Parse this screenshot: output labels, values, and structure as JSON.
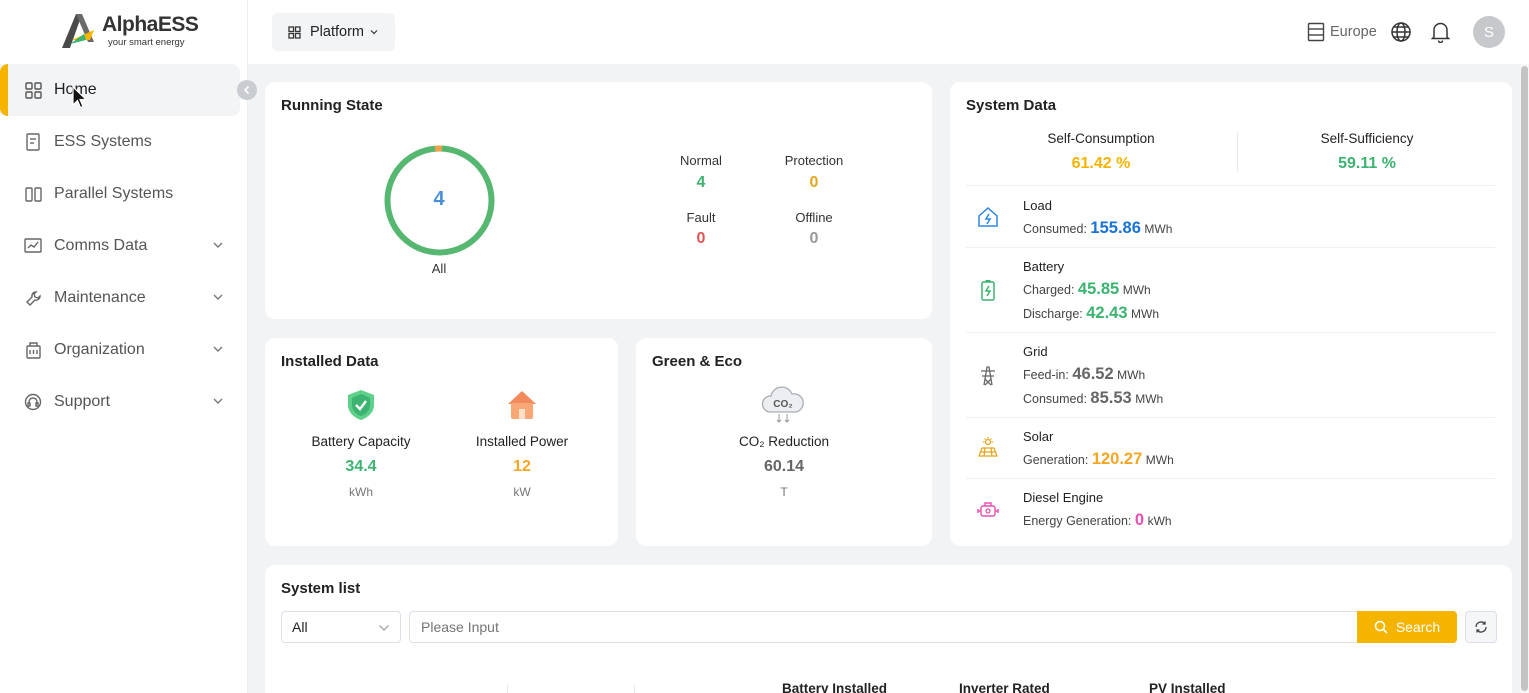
{
  "brand": {
    "name": "AlphaESS",
    "tagline": "your smart energy"
  },
  "sidebar": {
    "items": [
      {
        "label": "Home",
        "icon": "grid-icon",
        "active": true
      },
      {
        "label": "ESS Systems",
        "icon": "ess-icon"
      },
      {
        "label": "Parallel Systems",
        "icon": "parallel-icon"
      },
      {
        "label": "Comms Data",
        "icon": "chart-icon",
        "expandable": true
      },
      {
        "label": "Maintenance",
        "icon": "wrench-icon",
        "expandable": true
      },
      {
        "label": "Organization",
        "icon": "building-icon",
        "expandable": true
      },
      {
        "label": "Support",
        "icon": "headset-icon",
        "expandable": true
      }
    ]
  },
  "header": {
    "platform_label": "Platform",
    "region_label": "Europe",
    "avatar_initial": "S"
  },
  "running_state": {
    "title": "Running State",
    "total": "4",
    "total_label": "All",
    "normal_label": "Normal",
    "normal_value": "4",
    "protection_label": "Protection",
    "protection_value": "0",
    "fault_label": "Fault",
    "fault_value": "0",
    "offline_label": "Offline",
    "offline_value": "0"
  },
  "installed_data": {
    "title": "Installed Data",
    "battery_label": "Battery Capacity",
    "battery_value": "34.4",
    "battery_unit": "kWh",
    "power_label": "Installed Power",
    "power_value": "12",
    "power_unit": "kW"
  },
  "green_eco": {
    "title": "Green & Eco",
    "co2_label": "CO₂ Reduction",
    "co2_value": "60.14",
    "co2_unit": "T"
  },
  "system_data": {
    "title": "System Data",
    "self_consumption_label": "Self-Consumption",
    "self_consumption_value": "61.42",
    "self_sufficiency_label": "Self-Sufficiency",
    "self_sufficiency_value": "59.11",
    "percent": "%",
    "load": {
      "name": "Load",
      "consumed_label": "Consumed:",
      "consumed_value": "155.86",
      "unit": "MWh"
    },
    "battery": {
      "name": "Battery",
      "charged_label": "Charged:",
      "charged_value": "45.85",
      "discharge_label": "Discharge:",
      "discharge_value": "42.43",
      "unit": "MWh"
    },
    "grid": {
      "name": "Grid",
      "feedin_label": "Feed-in:",
      "feedin_value": "46.52",
      "consumed_label": "Consumed:",
      "consumed_value": "85.53",
      "unit": "MWh"
    },
    "solar": {
      "name": "Solar",
      "generation_label": "Generation:",
      "generation_value": "120.27",
      "unit": "MWh"
    },
    "diesel": {
      "name": "Diesel Engine",
      "generation_label": "Energy Generation:",
      "generation_value": "0",
      "unit": "kWh"
    }
  },
  "system_list": {
    "title": "System list",
    "filter_value": "All",
    "search_placeholder": "Please Input",
    "search_label": "Search",
    "columns": [
      "Battery Installed",
      "Inverter Rated",
      "PV Installed"
    ]
  },
  "colors": {
    "accent": "#f5b400",
    "green": "#3cb371",
    "blue": "#1a73d9",
    "red": "#e05555",
    "orange": "#f5a623",
    "pink": "#e84fb0"
  }
}
